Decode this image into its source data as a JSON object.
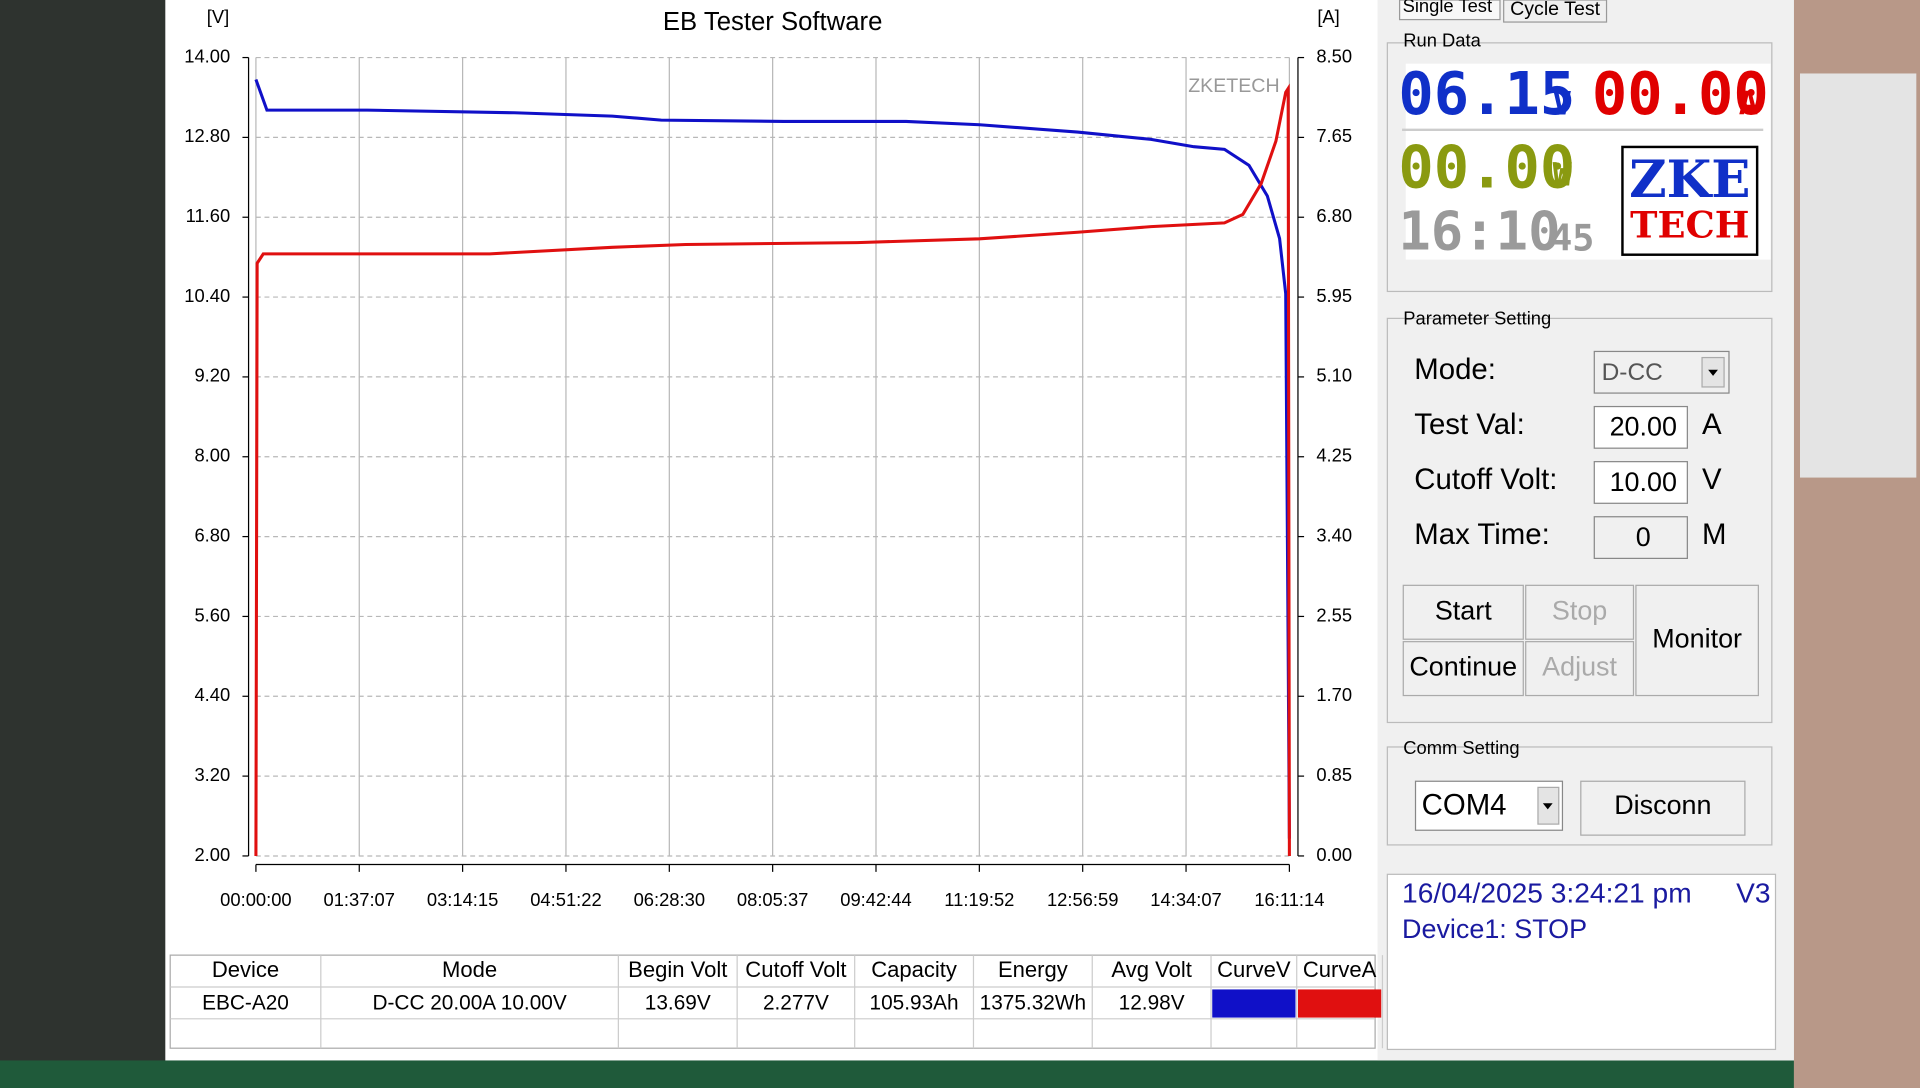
{
  "chart_data": {
    "type": "line",
    "title": "EB Tester Software",
    "y_label": "[V]",
    "y2_label": "[A]",
    "annotation": "ZKETECH",
    "grid": true,
    "xlim": [
      0,
      58274
    ],
    "xticks": [
      {
        "value": 0,
        "label": "00:00:00"
      },
      {
        "value": 5827,
        "label": "01:37:07"
      },
      {
        "value": 11655,
        "label": "03:14:15"
      },
      {
        "value": 17482,
        "label": "04:51:22"
      },
      {
        "value": 23310,
        "label": "06:28:30"
      },
      {
        "value": 29137,
        "label": "08:05:37"
      },
      {
        "value": 34964,
        "label": "09:42:44"
      },
      {
        "value": 40792,
        "label": "11:19:52"
      },
      {
        "value": 46619,
        "label": "12:56:59"
      },
      {
        "value": 52447,
        "label": "14:34:07"
      },
      {
        "value": 58274,
        "label": "16:11:14"
      }
    ],
    "ylim": [
      2,
      14
    ],
    "yticks": [
      {
        "value": 14,
        "label": "14.00"
      },
      {
        "value": 12.8,
        "label": "12.80"
      },
      {
        "value": 11.6,
        "label": "11.60"
      },
      {
        "value": 10.4,
        "label": "10.40"
      },
      {
        "value": 9.2,
        "label": "9.20"
      },
      {
        "value": 8,
        "label": "8.00"
      },
      {
        "value": 6.8,
        "label": "6.80"
      },
      {
        "value": 5.6,
        "label": "5.60"
      },
      {
        "value": 4.4,
        "label": "4.40"
      },
      {
        "value": 3.2,
        "label": "3.20"
      },
      {
        "value": 2,
        "label": "2.00"
      }
    ],
    "y2lim": [
      0,
      8.5
    ],
    "y2ticks": [
      {
        "value": 8.5,
        "label": "8.50"
      },
      {
        "value": 7.65,
        "label": "7.65"
      },
      {
        "value": 6.8,
        "label": "6.80"
      },
      {
        "value": 5.95,
        "label": "5.95"
      },
      {
        "value": 5.1,
        "label": "5.10"
      },
      {
        "value": 4.25,
        "label": "4.25"
      },
      {
        "value": 3.4,
        "label": "3.40"
      },
      {
        "value": 2.55,
        "label": "2.55"
      },
      {
        "value": 1.7,
        "label": "1.70"
      },
      {
        "value": 0.85,
        "label": "0.85"
      },
      {
        "value": 0,
        "label": "0.00"
      }
    ],
    "series": [
      {
        "name": "CurveV",
        "color": "#1010c8",
        "x": [
          0,
          621,
          6283,
          14568,
          20092,
          22854,
          29758,
          36662,
          40805,
          46329,
          50472,
          52888,
          54614,
          55995,
          57031,
          57721,
          58067,
          58205,
          58274
        ],
        "values": [
          13.67,
          13.21,
          13.21,
          13.17,
          13.12,
          13.06,
          13.04,
          13.04,
          12.99,
          12.88,
          12.77,
          12.66,
          12.62,
          12.38,
          11.92,
          11.28,
          10.45,
          5.11,
          2.26
        ]
      },
      {
        "name": "CurveA",
        "color": "#e01010",
        "axis": "y2",
        "x": [
          0,
          69,
          414,
          13187,
          20092,
          24235,
          33902,
          40805,
          46329,
          50472,
          54614,
          55650,
          56686,
          57514,
          58067,
          58205,
          58274
        ],
        "values": [
          0,
          6.31,
          6.41,
          6.41,
          6.48,
          6.51,
          6.53,
          6.57,
          6.64,
          6.7,
          6.74,
          6.83,
          7.16,
          7.61,
          8.13,
          8.17,
          0
        ]
      }
    ]
  },
  "table": {
    "headers": [
      "Device",
      "Mode",
      "Begin Volt",
      "Cutoff Volt",
      "Capacity",
      "Energy",
      "Avg Volt"
    ],
    "row": [
      "EBC-A20",
      "D-CC  20.00A  10.00V",
      "13.69V",
      "2.277V",
      "105.93Ah",
      "1375.32Wh",
      "12.98V"
    ]
  },
  "tabs": [
    "Single Test",
    "Cycle Test"
  ],
  "run_data": {
    "title": "Run Data",
    "voltage": "06.15",
    "voltage_unit": "V",
    "current": "00.00",
    "current_unit": "A",
    "power": "00.00",
    "power_unit": "W",
    "time": "16:10",
    "seconds": "45",
    "logo_top": "ZKE",
    "logo_bottom": "TECH"
  },
  "parameters": {
    "title": "Parameter Setting",
    "mode_label": "Mode:",
    "mode": "D-CC",
    "test_val_label": "Test Val:",
    "test_val": "20.00",
    "test_val_unit": "A",
    "cutoff_label": "Cutoff Volt:",
    "cutoff": "10.00",
    "cutoff_unit": "V",
    "max_time_label": "Max Time:",
    "max_time": "0",
    "max_time_unit": "M",
    "buttons": [
      "Start",
      "Stop",
      "Continue",
      "Adjust",
      "Monitor"
    ]
  },
  "comm": {
    "title": "Comm Setting",
    "port": "COM4",
    "button": "Disconn"
  },
  "status": {
    "datetime": "16/04/2025 3:24:21 pm",
    "version": "V3",
    "device": "Device1: STOP"
  }
}
